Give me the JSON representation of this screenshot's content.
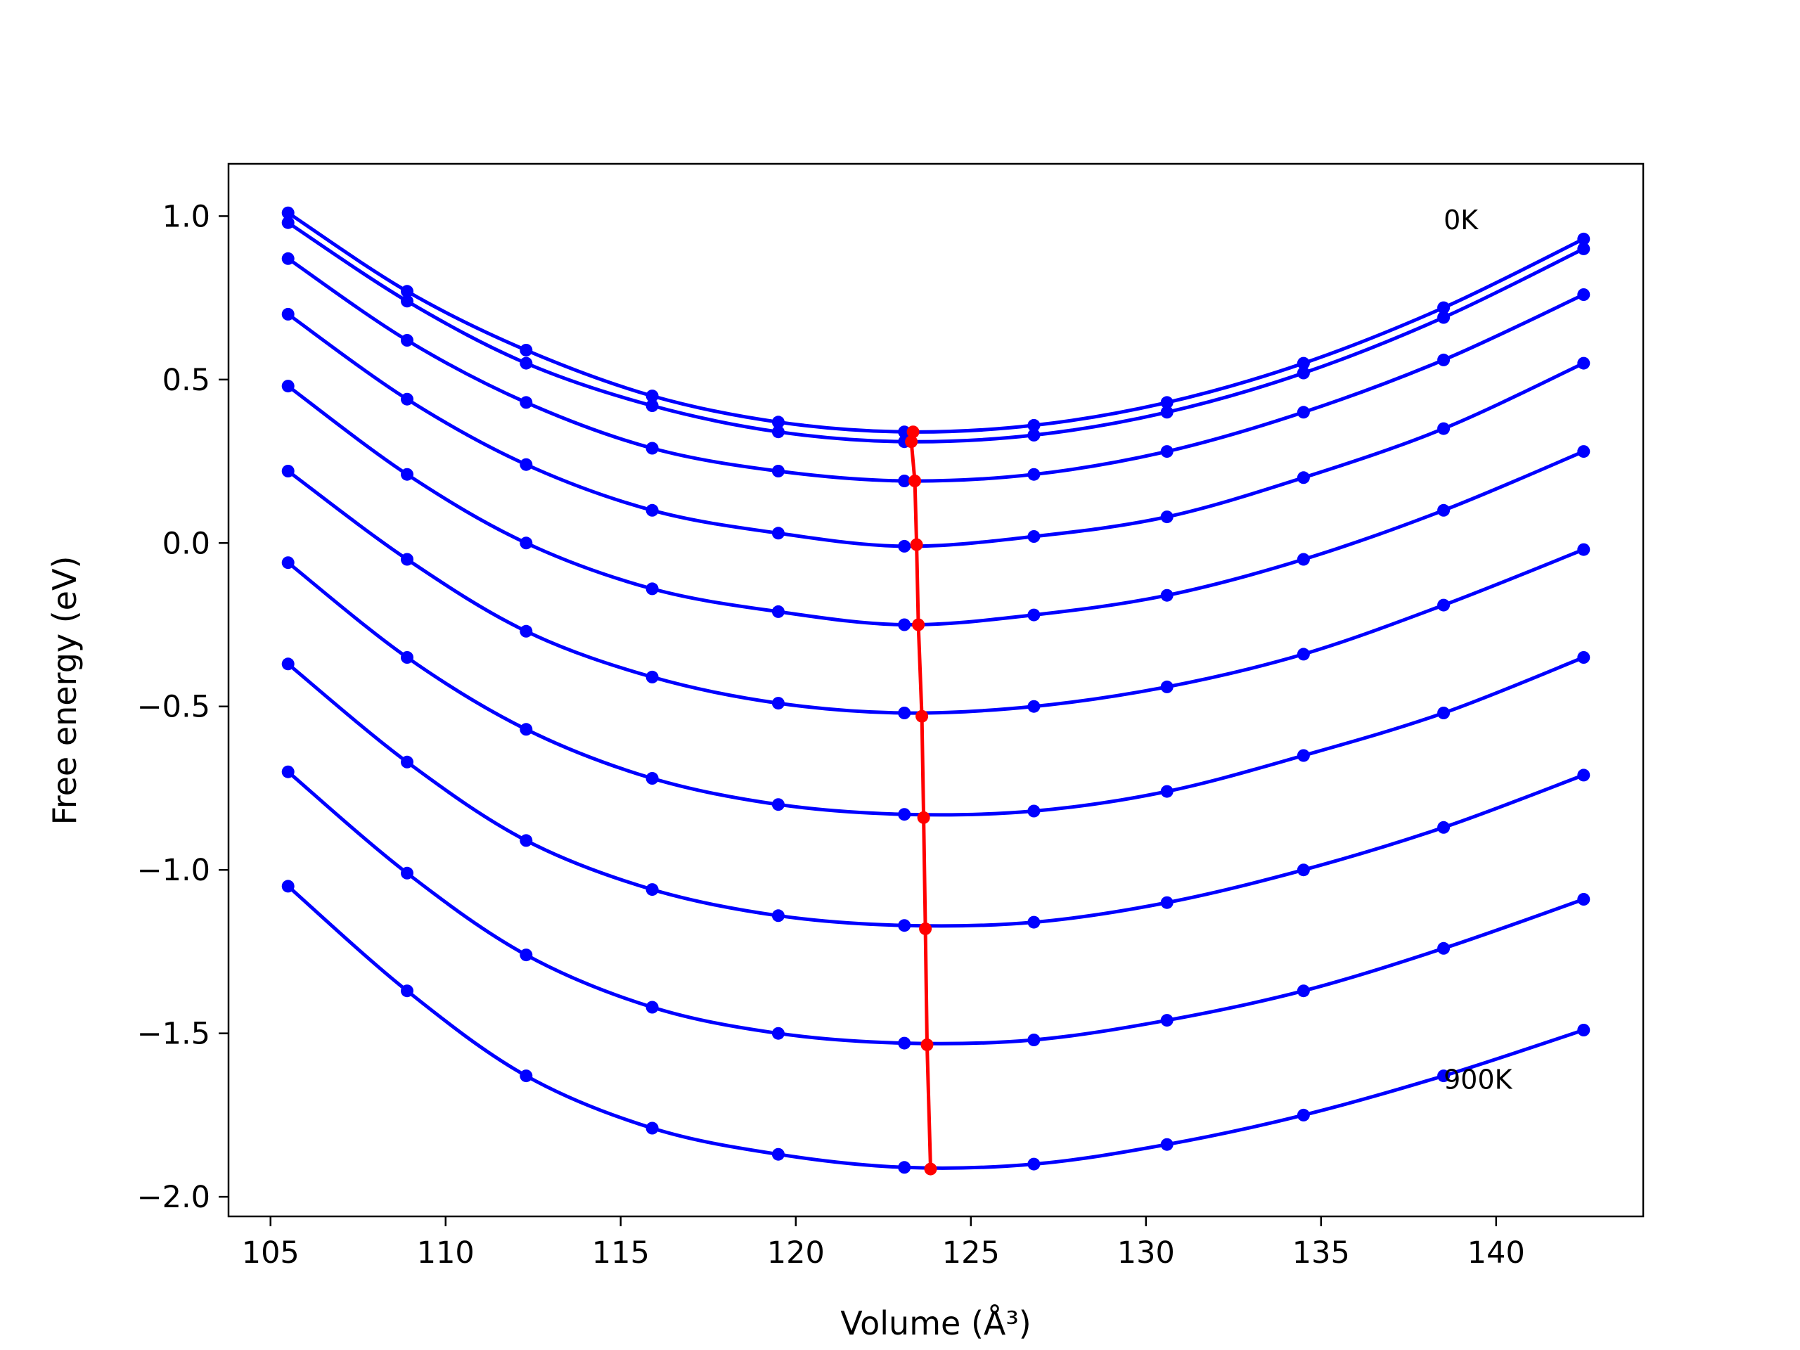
{
  "chart_data": {
    "type": "line",
    "xlabel": "Volume (Å³)",
    "ylabel": "Free energy (eV)",
    "xlim": [
      103.8,
      144.2
    ],
    "ylim": [
      -2.06,
      1.16
    ],
    "x_ticks": [
      105,
      110,
      115,
      120,
      125,
      130,
      135,
      140
    ],
    "y_ticks": [
      1.0,
      0.5,
      0.0,
      -0.5,
      -1.0,
      -1.5,
      -2.0
    ],
    "x_tick_labels": [
      "105",
      "110",
      "115",
      "120",
      "125",
      "130",
      "135",
      "140"
    ],
    "y_tick_labels": [
      "1.0",
      "0.5",
      "0.0",
      "−0.5",
      "−1.0",
      "−1.5",
      "−2.0"
    ],
    "grid": false,
    "annotations": [
      {
        "text": "0K",
        "x": 138.5,
        "y": 0.99
      },
      {
        "text": "900K",
        "x": 138.5,
        "y": -1.64
      }
    ],
    "series_color": "#0000ff",
    "minima_color": "#ff0000",
    "x": [
      105.5,
      108.9,
      112.3,
      115.9,
      119.5,
      123.1,
      126.8,
      130.6,
      134.5,
      138.5,
      142.5
    ],
    "series": [
      {
        "values": [
          1.01,
          0.77,
          0.59,
          0.45,
          0.37,
          0.34,
          0.36,
          0.43,
          0.55,
          0.72,
          0.93
        ]
      },
      {
        "values": [
          0.98,
          0.74,
          0.55,
          0.42,
          0.34,
          0.31,
          0.33,
          0.4,
          0.52,
          0.69,
          0.9
        ]
      },
      {
        "values": [
          0.87,
          0.62,
          0.43,
          0.29,
          0.22,
          0.19,
          0.21,
          0.28,
          0.4,
          0.56,
          0.76
        ]
      },
      {
        "values": [
          0.7,
          0.44,
          0.24,
          0.1,
          0.03,
          -0.01,
          0.02,
          0.08,
          0.2,
          0.35,
          0.55
        ]
      },
      {
        "values": [
          0.48,
          0.21,
          0.0,
          -0.14,
          -0.21,
          -0.25,
          -0.22,
          -0.16,
          -0.05,
          0.1,
          0.28
        ]
      },
      {
        "values": [
          0.22,
          -0.05,
          -0.27,
          -0.41,
          -0.49,
          -0.52,
          -0.5,
          -0.44,
          -0.34,
          -0.19,
          -0.02
        ]
      },
      {
        "values": [
          -0.06,
          -0.35,
          -0.57,
          -0.72,
          -0.8,
          -0.83,
          -0.82,
          -0.76,
          -0.65,
          -0.52,
          -0.35
        ]
      },
      {
        "values": [
          -0.37,
          -0.67,
          -0.91,
          -1.06,
          -1.14,
          -1.17,
          -1.16,
          -1.1,
          -1.0,
          -0.87,
          -0.71
        ]
      },
      {
        "values": [
          -0.7,
          -1.01,
          -1.26,
          -1.42,
          -1.5,
          -1.53,
          -1.52,
          -1.46,
          -1.37,
          -1.24,
          -1.09
        ]
      },
      {
        "values": [
          -1.05,
          -1.37,
          -1.63,
          -1.79,
          -1.87,
          -1.91,
          -1.9,
          -1.84,
          -1.75,
          -1.63,
          -1.49
        ]
      }
    ],
    "minima": [
      {
        "x": 123.35,
        "y": 0.34
      },
      {
        "x": 123.3,
        "y": 0.31
      },
      {
        "x": 123.4,
        "y": 0.19
      },
      {
        "x": 123.45,
        "y": -0.005
      },
      {
        "x": 123.5,
        "y": -0.25
      },
      {
        "x": 123.6,
        "y": -0.53
      },
      {
        "x": 123.65,
        "y": -0.84
      },
      {
        "x": 123.7,
        "y": -1.18
      },
      {
        "x": 123.75,
        "y": -1.535
      },
      {
        "x": 123.85,
        "y": -1.915
      }
    ]
  }
}
